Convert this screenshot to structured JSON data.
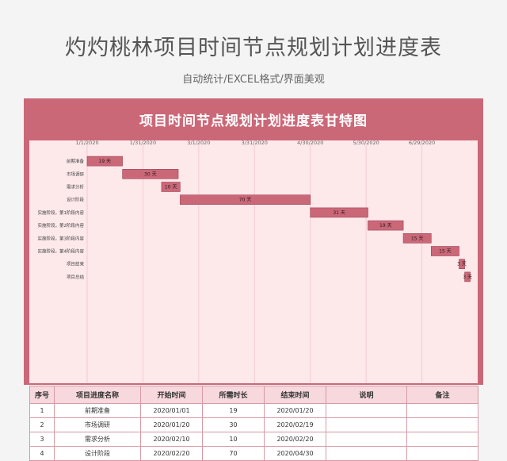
{
  "page": {
    "headline": "灼灼桃林项目时间节点规划计划进度表",
    "subheadline": "自动统计/EXCEL格式/界面美观"
  },
  "chart_data": {
    "type": "bar",
    "title": "项目时间节点规划计划进度表甘特图",
    "x_tick_labels": [
      "1/1/2020",
      "1/31/2020",
      "3/1/2020",
      "3/31/2020",
      "4/30/2020",
      "5/30/2020",
      "6/29/2020"
    ],
    "x_range_days": [
      0,
      210
    ],
    "categories": [
      "前期准备",
      "市场调研",
      "需求分析",
      "设计阶段",
      "实施阶段，第1阶段内容",
      "实施阶段，第2阶段内容",
      "实施阶段，第3阶段内容",
      "实施阶段，第4阶段内容",
      "项目结束",
      "项目总结"
    ],
    "start_day": [
      0,
      19,
      40,
      50,
      120,
      151,
      170,
      185,
      200,
      203
    ],
    "duration_days": [
      19,
      30,
      10,
      70,
      31,
      19,
      15,
      15,
      3,
      3
    ],
    "bar_labels": [
      "19 天",
      "30 天",
      "10 天",
      "70 天",
      "31 天",
      "19 天",
      "15 天",
      "15 天",
      "3 天",
      "3 天"
    ],
    "colors": {
      "bar": "#cb6878",
      "bar_border": "#9e4355",
      "grid": "#f3cdd3",
      "background": "#fde8ea"
    }
  },
  "table": {
    "headers": [
      "序号",
      "项目进度名称",
      "开始时间",
      "所需时长",
      "结束时间",
      "说明",
      "备注"
    ],
    "rows": [
      [
        "1",
        "前期准备",
        "2020/01/01",
        "19",
        "2020/01/20",
        "",
        ""
      ],
      [
        "2",
        "市场调研",
        "2020/01/20",
        "30",
        "2020/02/19",
        "",
        ""
      ],
      [
        "3",
        "需求分析",
        "2020/02/10",
        "10",
        "2020/02/20",
        "",
        ""
      ],
      [
        "4",
        "设计阶段",
        "2020/02/20",
        "70",
        "2020/04/30",
        "",
        ""
      ]
    ]
  }
}
